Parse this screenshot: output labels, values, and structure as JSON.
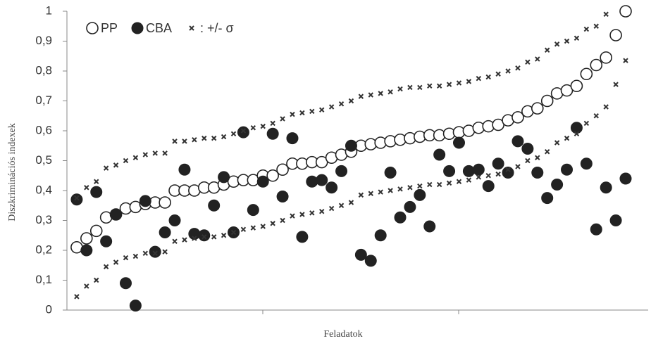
{
  "chart_data": {
    "type": "scatter",
    "x_label": "Feladatok",
    "y_label": "Diszkriminációs indexek",
    "x": [
      1,
      2,
      3,
      4,
      5,
      6,
      7,
      8,
      9,
      10,
      11,
      12,
      13,
      14,
      15,
      16,
      17,
      18,
      19,
      20,
      21,
      22,
      23,
      24,
      25,
      26,
      27,
      28,
      29,
      30,
      31,
      32,
      33,
      34,
      35,
      36,
      37,
      38,
      39,
      40,
      41,
      42,
      43,
      44,
      45,
      46,
      47,
      48,
      49,
      50,
      51,
      52,
      53,
      54,
      55,
      56,
      57
    ],
    "xlim": [
      0,
      59.3
    ],
    "ylim": [
      0,
      1
    ],
    "yticks": [
      0,
      {
        "value": 0.1,
        "label": "0,1"
      },
      {
        "value": 0.2,
        "label": "0,2"
      },
      {
        "value": 0.3,
        "label": "0,3"
      },
      {
        "value": 0.4,
        "label": "0,4"
      },
      {
        "value": 0.5,
        "label": "0,5"
      },
      {
        "value": 0.6,
        "label": "0,6"
      },
      {
        "value": 0.7,
        "label": "0,7"
      },
      {
        "value": 0.8,
        "label": "0,8"
      },
      {
        "value": 0.9,
        "label": "0,9"
      },
      1
    ],
    "series": [
      {
        "name": "PP",
        "marker": "open-circle",
        "color": "#222222",
        "values": [
          0.21,
          0.24,
          0.265,
          0.31,
          0.32,
          0.34,
          0.345,
          0.355,
          0.36,
          0.36,
          0.4,
          0.4,
          0.4,
          0.41,
          0.41,
          0.42,
          0.43,
          0.435,
          0.435,
          0.45,
          0.45,
          0.47,
          0.49,
          0.49,
          0.495,
          0.495,
          0.51,
          0.52,
          0.53,
          0.55,
          0.555,
          0.56,
          0.565,
          0.57,
          0.575,
          0.58,
          0.585,
          0.585,
          0.59,
          0.595,
          0.6,
          0.61,
          0.615,
          0.62,
          0.635,
          0.645,
          0.665,
          0.675,
          0.7,
          0.725,
          0.735,
          0.75,
          0.79,
          0.82,
          0.845,
          0.92,
          1.0
        ]
      },
      {
        "name": "CBA",
        "marker": "filled-circle",
        "color": "#222222",
        "values": [
          0.37,
          0.2,
          0.395,
          0.23,
          0.32,
          0.09,
          0.015,
          0.365,
          0.195,
          0.26,
          0.3,
          0.47,
          0.255,
          0.25,
          0.35,
          0.445,
          0.26,
          0.595,
          0.335,
          0.43,
          0.59,
          0.38,
          0.575,
          0.245,
          0.43,
          0.435,
          0.41,
          0.465,
          0.55,
          0.185,
          0.165,
          0.25,
          0.46,
          0.31,
          0.345,
          0.385,
          0.28,
          0.52,
          0.465,
          0.56,
          0.465,
          0.47,
          0.415,
          0.49,
          0.46,
          0.565,
          0.54,
          0.46,
          0.375,
          0.42,
          0.47,
          0.61,
          0.49,
          0.27,
          0.41,
          0.3,
          0.44
        ]
      },
      {
        "name": ": +/- σ",
        "marker": "cross",
        "color": "#333333",
        "values": [
          0.375,
          0.41,
          0.43,
          0.475,
          0.485,
          0.5,
          0.51,
          0.52,
          0.525,
          0.525,
          0.565,
          0.565,
          0.57,
          0.575,
          0.575,
          0.58,
          0.59,
          0.6,
          0.61,
          0.615,
          0.625,
          0.64,
          0.655,
          0.66,
          0.665,
          0.67,
          0.68,
          0.69,
          0.7,
          0.715,
          0.72,
          0.725,
          0.73,
          0.74,
          0.745,
          0.745,
          0.75,
          0.75,
          0.755,
          0.76,
          0.765,
          0.775,
          0.78,
          0.79,
          0.8,
          0.81,
          0.83,
          0.84,
          0.87,
          0.89,
          0.9,
          0.91,
          0.94,
          0.95,
          0.99,
          null,
          null
        ]
      },
      {
        "marker": "cross",
        "color": "#333333",
        "values": [
          0.045,
          0.08,
          0.1,
          0.145,
          0.16,
          0.175,
          0.18,
          0.19,
          0.19,
          0.195,
          0.23,
          0.235,
          0.24,
          0.245,
          0.245,
          0.25,
          0.26,
          0.27,
          0.275,
          0.28,
          0.29,
          0.3,
          0.315,
          0.32,
          0.325,
          0.33,
          0.34,
          0.35,
          0.36,
          0.385,
          0.39,
          0.395,
          0.4,
          0.405,
          0.41,
          0.415,
          0.42,
          0.42,
          0.425,
          0.43,
          0.435,
          0.445,
          0.45,
          0.455,
          0.47,
          0.48,
          0.5,
          0.51,
          0.53,
          0.56,
          0.575,
          0.59,
          0.625,
          0.65,
          0.68,
          0.755,
          0.835
        ]
      }
    ]
  }
}
